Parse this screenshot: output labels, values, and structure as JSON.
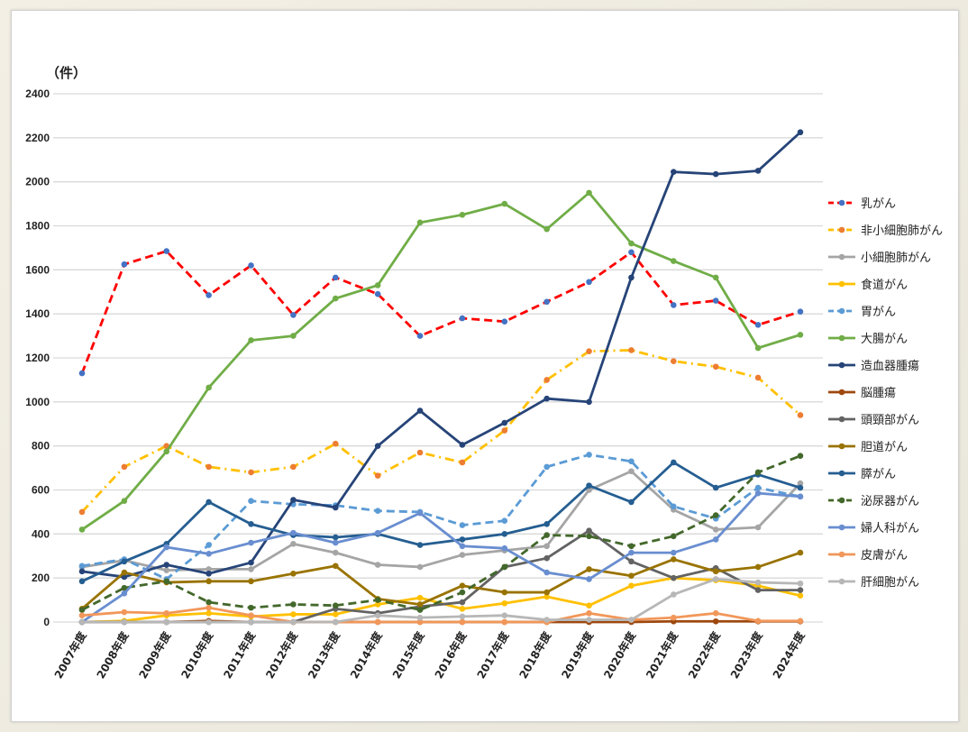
{
  "chart_data": {
    "type": "line",
    "unit_label": "（件）",
    "ylim": [
      0,
      2400
    ],
    "yticks": [
      0,
      200,
      400,
      600,
      800,
      1000,
      1200,
      1400,
      1600,
      1800,
      2000,
      2200,
      2400
    ],
    "grid": true,
    "legend_position": "right",
    "categories": [
      "2007年度",
      "2008年度",
      "2009年度",
      "2010年度",
      "2011年度",
      "2012年度",
      "2013年度",
      "2014年度",
      "2015年度",
      "2016年度",
      "2017年度",
      "2018年度",
      "2019年度",
      "2020年度",
      "2021年度",
      "2022年度",
      "2023年度",
      "2024年度"
    ],
    "series": [
      {
        "name": "乳がん",
        "color": "#ff0000",
        "marker": "#4472c4",
        "dash": "dash",
        "values": [
          1130,
          1625,
          1685,
          1485,
          1620,
          1395,
          1565,
          1490,
          1300,
          1380,
          1365,
          1455,
          1545,
          1680,
          1440,
          1460,
          1350,
          1410
        ]
      },
      {
        "name": "非小細胞肺がん",
        "color": "#ffc000",
        "marker": "#ed7d31",
        "dash": "dashdot",
        "values": [
          500,
          705,
          800,
          705,
          680,
          705,
          810,
          665,
          770,
          725,
          870,
          1100,
          1230,
          1235,
          1185,
          1160,
          1110,
          940
        ]
      },
      {
        "name": "小細胞肺がん",
        "color": "#a5a5a5",
        "marker": "#a5a5a5",
        "dash": "solid",
        "values": [
          250,
          280,
          235,
          240,
          240,
          355,
          315,
          260,
          250,
          305,
          325,
          345,
          600,
          685,
          510,
          420,
          430,
          630
        ]
      },
      {
        "name": "食道がん",
        "color": "#ffc000",
        "marker": "#ffc000",
        "dash": "solid",
        "values": [
          0,
          5,
          30,
          40,
          25,
          35,
          35,
          80,
          110,
          60,
          85,
          115,
          75,
          165,
          200,
          190,
          165,
          120
        ]
      },
      {
        "name": "胃がん",
        "color": "#5b9bd5",
        "marker": "#5b9bd5",
        "dash": "dash",
        "values": [
          255,
          285,
          195,
          350,
          550,
          535,
          530,
          505,
          500,
          440,
          460,
          705,
          760,
          730,
          525,
          470,
          610,
          570
        ]
      },
      {
        "name": "大腸がん",
        "color": "#70ad47",
        "marker": "#70ad47",
        "dash": "solid",
        "values": [
          420,
          550,
          775,
          1065,
          1280,
          1300,
          1470,
          1530,
          1815,
          1850,
          1900,
          1785,
          1950,
          1720,
          1640,
          1565,
          1245,
          1305
        ]
      },
      {
        "name": "造血器腫瘍",
        "color": "#264478",
        "marker": "#264478",
        "dash": "solid",
        "values": [
          230,
          205,
          260,
          220,
          270,
          555,
          520,
          800,
          960,
          805,
          905,
          1015,
          1000,
          1565,
          2045,
          2035,
          2050,
          2225
        ]
      },
      {
        "name": "脳腫瘍",
        "color": "#9e480e",
        "marker": "#9e480e",
        "dash": "solid",
        "values": [
          0,
          0,
          0,
          5,
          0,
          0,
          0,
          0,
          0,
          0,
          0,
          0,
          0,
          0,
          3,
          3,
          3,
          3
        ]
      },
      {
        "name": "頭頸部がん",
        "color": "#636363",
        "marker": "#636363",
        "dash": "solid",
        "values": [
          0,
          0,
          0,
          0,
          0,
          0,
          60,
          40,
          70,
          90,
          250,
          290,
          415,
          275,
          200,
          245,
          145,
          145
        ]
      },
      {
        "name": "胆道がん",
        "color": "#997300",
        "marker": "#997300",
        "dash": "solid",
        "values": [
          60,
          225,
          180,
          185,
          185,
          220,
          255,
          105,
          80,
          165,
          135,
          135,
          240,
          210,
          285,
          230,
          250,
          315
        ]
      },
      {
        "name": "膵がん",
        "color": "#255e91",
        "marker": "#255e91",
        "dash": "solid",
        "values": [
          185,
          275,
          355,
          545,
          445,
          395,
          385,
          400,
          350,
          375,
          400,
          445,
          620,
          545,
          725,
          610,
          670,
          610
        ]
      },
      {
        "name": "泌尿器がん",
        "color": "#43682b",
        "marker": "#43682b",
        "dash": "dash",
        "values": [
          55,
          155,
          185,
          90,
          65,
          80,
          75,
          100,
          55,
          135,
          250,
          395,
          390,
          345,
          390,
          485,
          680,
          755
        ]
      },
      {
        "name": "婦人科がん",
        "color": "#698ed0",
        "marker": "#698ed0",
        "dash": "solid",
        "values": [
          0,
          130,
          340,
          310,
          360,
          405,
          360,
          405,
          495,
          345,
          335,
          225,
          195,
          315,
          315,
          375,
          585,
          570
        ]
      },
      {
        "name": "皮膚がん",
        "color": "#f1975a",
        "marker": "#f1975a",
        "dash": "solid",
        "values": [
          30,
          45,
          40,
          65,
          30,
          0,
          0,
          0,
          0,
          0,
          0,
          0,
          40,
          10,
          20,
          40,
          5,
          5
        ]
      },
      {
        "name": "肝細胞がん",
        "color": "#b7b7b7",
        "marker": "#b7b7b7",
        "dash": "solid",
        "values": [
          0,
          0,
          0,
          0,
          0,
          0,
          0,
          30,
          20,
          25,
          30,
          10,
          10,
          10,
          125,
          195,
          180,
          175
        ]
      }
    ]
  }
}
